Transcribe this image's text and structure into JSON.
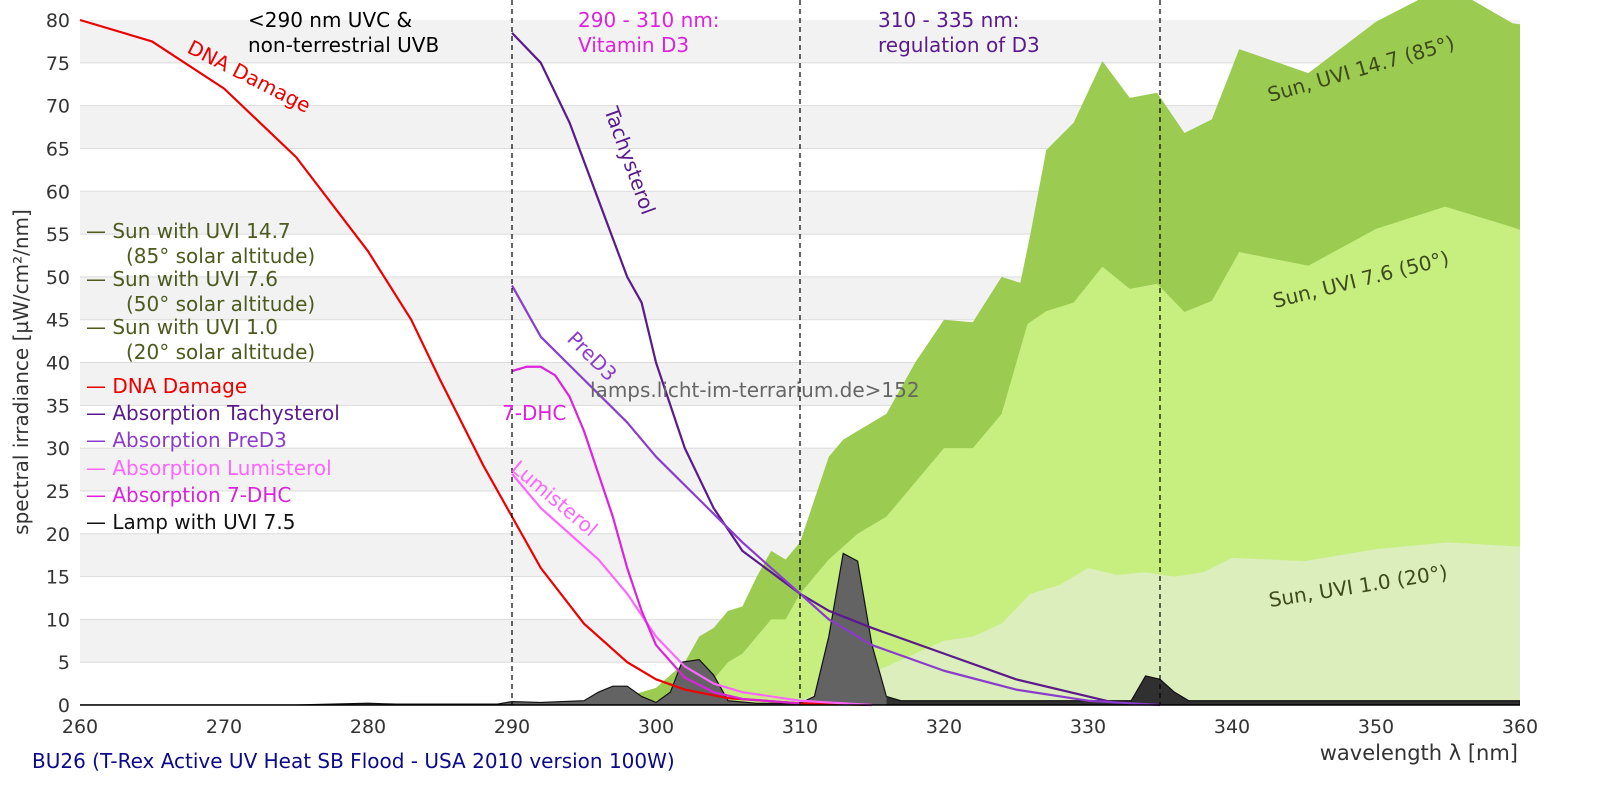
{
  "chart_data": {
    "type": "area",
    "title": "BU26 (T-Rex Active UV Heat SB Flood - USA 2010 version 100W)",
    "xlabel": "wavelength λ [nm]",
    "ylabel": "spectral irradiance [µW/cm²/nm]",
    "xlim": [
      260,
      360
    ],
    "ylim": [
      0,
      80
    ],
    "xticks": [
      260,
      270,
      280,
      290,
      300,
      310,
      320,
      330,
      340,
      350,
      360
    ],
    "yticks": [
      0,
      5,
      10,
      15,
      20,
      25,
      30,
      35,
      40,
      45,
      50,
      55,
      60,
      65,
      70,
      75,
      80
    ],
    "grid": "horizontal alternating bands",
    "vlines": [
      290,
      310,
      335
    ],
    "annotations": {
      "uvc_line1": "<290 nm UVC &",
      "uvc_line2": "non-terrestrial UVB",
      "vitd_line1": "290 - 310 nm:",
      "vitd_line2": "Vitamin D3",
      "reg_line1": "310 - 335 nm:",
      "reg_line2": "regulation of D3",
      "watermark": "lamps.licht-im-terrarium.de>152",
      "label_dna": "DNA Damage",
      "label_tachy": "Tachysterol",
      "label_pred3": "PreD3",
      "label_7dhc": "7-DHC",
      "label_lumi": "Lumisterol",
      "label_sun147": "Sun, UVI 14.7 (85°)",
      "label_sun76": "Sun, UVI 7.6 (50°)",
      "label_sun10": "Sun, UVI 1.0 (20°)"
    },
    "legend": {
      "placement": "left",
      "entries": [
        {
          "line1": "— Sun with UVI 14.7",
          "line2": "(85° solar altitude)",
          "color": "#4b5a1e"
        },
        {
          "line1": "— Sun with UVI 7.6",
          "line2": "(50° solar altitude)",
          "color": "#4b5a1e"
        },
        {
          "line1": "— Sun with UVI 1.0",
          "line2": "(20° solar altitude)",
          "color": "#4b5a1e"
        },
        {
          "line1": "— DNA Damage",
          "color": "#ee0000"
        },
        {
          "line1": "— Absorption Tachysterol",
          "color": "#5a1a8c"
        },
        {
          "line1": "— Absorption PreD3",
          "color": "#8a3ccc"
        },
        {
          "line1": "— Absorption Lumisterol",
          "color": "#ff66ff"
        },
        {
          "line1": "— Absorption 7-DHC",
          "color": "#dd22dd"
        },
        {
          "line1": "— Lamp with UVI 7.5",
          "color": "#111111"
        }
      ]
    },
    "areas": [
      {
        "name": "Sun with UVI 14.7",
        "color": "#9bcb50",
        "points": [
          [
            296,
            0
          ],
          [
            297,
            0.5
          ],
          [
            299,
            1.5
          ],
          [
            300,
            2
          ],
          [
            302,
            5
          ],
          [
            303,
            8
          ],
          [
            304,
            9
          ],
          [
            305,
            11
          ],
          [
            306,
            11.5
          ],
          [
            307,
            15
          ],
          [
            308,
            18
          ],
          [
            309,
            17
          ],
          [
            310,
            19
          ],
          [
            311,
            24
          ],
          [
            312,
            29
          ],
          [
            313,
            31
          ],
          [
            314,
            32
          ],
          [
            316,
            34
          ],
          [
            318,
            40
          ],
          [
            320,
            45
          ],
          [
            322,
            44.7
          ],
          [
            324,
            50
          ],
          [
            325.3,
            49.3
          ],
          [
            326,
            55
          ],
          [
            327.1,
            64.8
          ],
          [
            329,
            68
          ],
          [
            331,
            75.2
          ],
          [
            332.9,
            70.9
          ],
          [
            334.8,
            71.5
          ],
          [
            336.7,
            66.8
          ],
          [
            338.6,
            68.4
          ],
          [
            340.5,
            76.6
          ],
          [
            345.3,
            73.8
          ],
          [
            350,
            79.8
          ],
          [
            353.7,
            83
          ],
          [
            356,
            83
          ],
          [
            359.5,
            79.6
          ],
          [
            360,
            79.5
          ]
        ]
      },
      {
        "name": "Sun with UVI 7.6",
        "color": "#c6ef80",
        "points": [
          [
            299,
            0
          ],
          [
            300,
            0.5
          ],
          [
            302,
            1.5
          ],
          [
            304,
            3
          ],
          [
            305,
            5
          ],
          [
            306,
            6
          ],
          [
            308,
            10
          ],
          [
            309,
            10
          ],
          [
            310,
            13
          ],
          [
            312,
            17
          ],
          [
            314,
            20
          ],
          [
            316,
            22
          ],
          [
            318,
            26
          ],
          [
            320,
            30
          ],
          [
            322,
            30
          ],
          [
            324,
            34
          ],
          [
            325.8,
            44.5
          ],
          [
            327.1,
            46
          ],
          [
            329,
            47
          ],
          [
            331,
            51.2
          ],
          [
            332.9,
            48.6
          ],
          [
            334.8,
            49.2
          ],
          [
            336.7,
            45.9
          ],
          [
            338.6,
            47.2
          ],
          [
            340.5,
            52.9
          ],
          [
            345.3,
            51.3
          ],
          [
            350,
            55.6
          ],
          [
            354.8,
            58.2
          ],
          [
            359.5,
            55.8
          ],
          [
            360,
            55.5
          ]
        ]
      },
      {
        "name": "Sun with UVI 1.0",
        "color": "#dbeebb",
        "points": [
          [
            308,
            0
          ],
          [
            310,
            0.5
          ],
          [
            312,
            2
          ],
          [
            314,
            3
          ],
          [
            316,
            4.5
          ],
          [
            318,
            6
          ],
          [
            320,
            7.5
          ],
          [
            322,
            8
          ],
          [
            324,
            9.5
          ],
          [
            326,
            13
          ],
          [
            328,
            14
          ],
          [
            330,
            16
          ],
          [
            332,
            15.2
          ],
          [
            334,
            15.5
          ],
          [
            336,
            15
          ],
          [
            338,
            15.5
          ],
          [
            340,
            17.2
          ],
          [
            345,
            16.8
          ],
          [
            350,
            18.2
          ],
          [
            355,
            19
          ],
          [
            360,
            18.5
          ]
        ]
      },
      {
        "name": "Lamp with UVI 7.5",
        "color": "#636363",
        "dark_from": 316,
        "dark_color": "#303030",
        "points": [
          [
            260,
            0
          ],
          [
            275,
            0
          ],
          [
            280,
            0.2
          ],
          [
            282,
            0.1
          ],
          [
            289,
            0.1
          ],
          [
            290,
            0.4
          ],
          [
            292,
            0.3
          ],
          [
            295,
            0.5
          ],
          [
            296,
            1.5
          ],
          [
            297,
            2.2
          ],
          [
            298,
            2.2
          ],
          [
            299,
            1
          ],
          [
            300,
            0.3
          ],
          [
            301,
            1.5
          ],
          [
            301.8,
            5
          ],
          [
            303,
            5.3
          ],
          [
            304,
            3.5
          ],
          [
            305,
            0.5
          ],
          [
            307,
            0.2
          ],
          [
            310,
            0.2
          ],
          [
            311,
            1
          ],
          [
            312,
            8
          ],
          [
            313,
            17.7
          ],
          [
            314,
            16.8
          ],
          [
            315,
            7
          ],
          [
            316,
            1
          ],
          [
            317,
            0.5
          ],
          [
            333,
            0.5
          ],
          [
            334,
            3.4
          ],
          [
            335,
            3
          ],
          [
            336,
            1.5
          ],
          [
            337,
            0.5
          ],
          [
            360,
            0.5
          ]
        ]
      }
    ],
    "series": [
      {
        "name": "DNA Damage",
        "color": "#ee0000",
        "points": [
          [
            260,
            80
          ],
          [
            265,
            77.5
          ],
          [
            270,
            72
          ],
          [
            275,
            64
          ],
          [
            280,
            53
          ],
          [
            283,
            45
          ],
          [
            285,
            38
          ],
          [
            288,
            28
          ],
          [
            290,
            22
          ],
          [
            292,
            16
          ],
          [
            295,
            9.5
          ],
          [
            298,
            5
          ],
          [
            300,
            3
          ],
          [
            302,
            1.8
          ],
          [
            305,
            0.8
          ],
          [
            310,
            0.2
          ],
          [
            315,
            0
          ]
        ]
      },
      {
        "name": "Absorption Tachysterol",
        "color": "#5a1a8c",
        "points": [
          [
            290,
            78.5
          ],
          [
            292,
            75
          ],
          [
            294,
            68
          ],
          [
            296,
            59
          ],
          [
            298,
            50
          ],
          [
            299,
            47
          ],
          [
            300,
            40
          ],
          [
            302,
            30
          ],
          [
            304,
            23
          ],
          [
            306,
            18
          ],
          [
            308,
            15.5
          ],
          [
            310,
            13
          ],
          [
            312,
            11
          ],
          [
            315,
            9
          ],
          [
            320,
            6
          ],
          [
            325,
            3
          ],
          [
            330,
            1
          ],
          [
            332,
            0.2
          ]
        ]
      },
      {
        "name": "Absorption PreD3",
        "color": "#8a3ccc",
        "points": [
          [
            290,
            49
          ],
          [
            292,
            43
          ],
          [
            295,
            38
          ],
          [
            298,
            33
          ],
          [
            300,
            29
          ],
          [
            303,
            24
          ],
          [
            306,
            19
          ],
          [
            309,
            14.5
          ],
          [
            310,
            13
          ],
          [
            312,
            10
          ],
          [
            315,
            7
          ],
          [
            320,
            4
          ],
          [
            325,
            1.8
          ],
          [
            330,
            0.5
          ],
          [
            335,
            0
          ]
        ]
      },
      {
        "name": "Absorption Lumisterol",
        "color": "#ff66ff",
        "points": [
          [
            290,
            27
          ],
          [
            292,
            23
          ],
          [
            294,
            20
          ],
          [
            296,
            17
          ],
          [
            298,
            13
          ],
          [
            300,
            8
          ],
          [
            302,
            4.5
          ],
          [
            304,
            2.5
          ],
          [
            306,
            1.5
          ],
          [
            310,
            0.5
          ],
          [
            315,
            0
          ]
        ]
      },
      {
        "name": "Absorption 7-DHC",
        "color": "#dd22dd",
        "points": [
          [
            290,
            39
          ],
          [
            291,
            39.5
          ],
          [
            292,
            39.5
          ],
          [
            293,
            38.5
          ],
          [
            294,
            36
          ],
          [
            295,
            32
          ],
          [
            296,
            27
          ],
          [
            297,
            22
          ],
          [
            298,
            16
          ],
          [
            299,
            11
          ],
          [
            300,
            7
          ],
          [
            302,
            3.2
          ],
          [
            304,
            1.5
          ],
          [
            306,
            0.7
          ],
          [
            310,
            0.2
          ]
        ]
      }
    ]
  }
}
